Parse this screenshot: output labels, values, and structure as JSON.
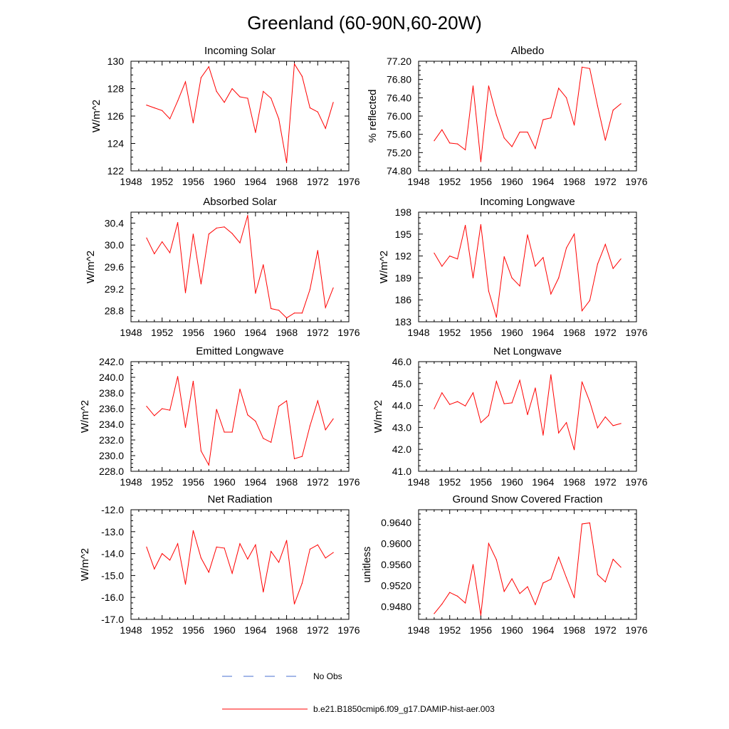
{
  "title": "Greenland (60-90N,60-20W)",
  "colors": {
    "series": "#ff0000",
    "obs": "#4a6fd0",
    "frame": "#000000"
  },
  "legend": [
    {
      "label": "No Obs",
      "style": "dashed",
      "color": "#4a6fd0"
    },
    {
      "label": "b.e21.B1850cmip6.f09_g17.DAMIP-hist-aer.003",
      "style": "solid",
      "color": "#ff0000"
    }
  ],
  "chart_data": [
    {
      "type": "line",
      "title": "Incoming Solar",
      "ylabel": "W/m^2",
      "xlim": [
        1948,
        1976
      ],
      "xticks": [
        1948,
        1952,
        1956,
        1960,
        1964,
        1968,
        1972,
        1976
      ],
      "ylim": [
        122,
        130
      ],
      "yticks": [
        "122",
        "124",
        "126",
        "128",
        "130"
      ],
      "x": [
        1950,
        1951,
        1952,
        1953,
        1954,
        1955,
        1956,
        1957,
        1958,
        1959,
        1960,
        1961,
        1962,
        1963,
        1964,
        1965,
        1966,
        1967,
        1968,
        1969,
        1970,
        1971,
        1972,
        1973,
        1974
      ],
      "series": [
        {
          "name": "b.e21.B1850cmip6.f09_g17.DAMIP-hist-aer.003",
          "values": [
            126.8,
            126.6,
            126.4,
            125.8,
            127.1,
            128.5,
            125.5,
            128.8,
            129.6,
            127.8,
            127.0,
            128.0,
            127.4,
            127.3,
            124.8,
            127.8,
            127.3,
            125.8,
            122.6,
            129.8,
            128.9,
            126.6,
            126.3,
            125.1,
            127.0
          ]
        }
      ]
    },
    {
      "type": "line",
      "title": "Albedo",
      "ylabel": "% reflected",
      "xlim": [
        1948,
        1976
      ],
      "xticks": [
        1948,
        1952,
        1956,
        1960,
        1964,
        1968,
        1972,
        1976
      ],
      "ylim": [
        74.8,
        77.2
      ],
      "yticks": [
        "74.80",
        "75.20",
        "75.60",
        "76.00",
        "76.40",
        "76.80",
        "77.20"
      ],
      "x": [
        1950,
        1951,
        1952,
        1953,
        1954,
        1955,
        1956,
        1957,
        1958,
        1959,
        1960,
        1961,
        1962,
        1963,
        1964,
        1965,
        1966,
        1967,
        1968,
        1969,
        1970,
        1971,
        1972,
        1973,
        1974
      ],
      "series": [
        {
          "name": "b.e21.B1850cmip6.f09_g17.DAMIP-hist-aer.003",
          "values": [
            75.46,
            75.7,
            75.41,
            75.39,
            75.26,
            76.66,
            75.0,
            76.66,
            76.02,
            75.52,
            75.33,
            75.65,
            75.65,
            75.29,
            75.92,
            75.96,
            76.61,
            76.4,
            75.8,
            77.07,
            77.04,
            76.22,
            75.47,
            76.13,
            76.27
          ]
        }
      ]
    },
    {
      "type": "line",
      "title": "Absorbed Solar",
      "ylabel": "W/m^2",
      "xlim": [
        1948,
        1976
      ],
      "xticks": [
        1948,
        1952,
        1956,
        1960,
        1964,
        1968,
        1972,
        1976
      ],
      "ylim": [
        28.6,
        30.6
      ],
      "yticks": [
        "28.8",
        "29.2",
        "29.6",
        "30.0",
        "30.4"
      ],
      "x": [
        1950,
        1951,
        1952,
        1953,
        1954,
        1955,
        1956,
        1957,
        1958,
        1959,
        1960,
        1961,
        1962,
        1963,
        1964,
        1965,
        1966,
        1967,
        1968,
        1969,
        1970,
        1971,
        1972,
        1973,
        1974
      ],
      "series": [
        {
          "name": "b.e21.B1850cmip6.f09_g17.DAMIP-hist-aer.003",
          "values": [
            30.13,
            29.84,
            30.06,
            29.86,
            30.41,
            29.13,
            30.2,
            29.29,
            30.2,
            30.31,
            30.33,
            30.21,
            30.04,
            30.54,
            29.12,
            29.64,
            28.84,
            28.81,
            28.67,
            28.76,
            28.76,
            29.19,
            29.9,
            28.86,
            29.22
          ]
        }
      ]
    },
    {
      "type": "line",
      "title": "Incoming Longwave",
      "ylabel": "W/m^2",
      "xlim": [
        1948,
        1976
      ],
      "xticks": [
        1948,
        1952,
        1956,
        1960,
        1964,
        1968,
        1972,
        1976
      ],
      "ylim": [
        183,
        198
      ],
      "yticks": [
        "183",
        "186",
        "189",
        "192",
        "195",
        "198"
      ],
      "x": [
        1950,
        1951,
        1952,
        1953,
        1954,
        1955,
        1956,
        1957,
        1958,
        1959,
        1960,
        1961,
        1962,
        1963,
        1964,
        1965,
        1966,
        1967,
        1968,
        1969,
        1970,
        1971,
        1972,
        1973,
        1974
      ],
      "series": [
        {
          "name": "b.e21.B1850cmip6.f09_g17.DAMIP-hist-aer.003",
          "values": [
            192.4,
            190.6,
            192.0,
            191.6,
            196.2,
            189.0,
            196.3,
            187.2,
            183.6,
            191.9,
            189.0,
            187.9,
            194.9,
            190.6,
            191.8,
            186.8,
            189.0,
            193.1,
            195.0,
            184.5,
            185.9,
            190.9,
            193.6,
            190.3,
            191.6
          ]
        }
      ]
    },
    {
      "type": "line",
      "title": "Emitted Longwave",
      "ylabel": "W/m^2",
      "xlim": [
        1948,
        1976
      ],
      "xticks": [
        1948,
        1952,
        1956,
        1960,
        1964,
        1968,
        1972,
        1976
      ],
      "ylim": [
        228,
        242
      ],
      "yticks": [
        "228.0",
        "230.0",
        "232.0",
        "234.0",
        "236.0",
        "238.0",
        "240.0",
        "242.0"
      ],
      "x": [
        1950,
        1951,
        1952,
        1953,
        1954,
        1955,
        1956,
        1957,
        1958,
        1959,
        1960,
        1961,
        1962,
        1963,
        1964,
        1965,
        1966,
        1967,
        1968,
        1969,
        1970,
        1971,
        1972,
        1973,
        1974
      ],
      "series": [
        {
          "name": "b.e21.B1850cmip6.f09_g17.DAMIP-hist-aer.003",
          "values": [
            236.3,
            235.1,
            236.0,
            235.8,
            240.1,
            233.6,
            239.5,
            230.6,
            228.8,
            235.9,
            233.0,
            233.0,
            238.5,
            235.2,
            234.4,
            232.2,
            231.7,
            236.3,
            237.0,
            229.6,
            229.9,
            233.8,
            237.0,
            233.3,
            234.7
          ]
        }
      ]
    },
    {
      "type": "line",
      "title": "Net Longwave",
      "ylabel": "W/m^2",
      "xlim": [
        1948,
        1976
      ],
      "xticks": [
        1948,
        1952,
        1956,
        1960,
        1964,
        1968,
        1972,
        1976
      ],
      "ylim": [
        41,
        46
      ],
      "yticks": [
        "41.0",
        "42.0",
        "43.0",
        "44.0",
        "45.0",
        "46.0"
      ],
      "x": [
        1950,
        1951,
        1952,
        1953,
        1954,
        1955,
        1956,
        1957,
        1958,
        1959,
        1960,
        1961,
        1962,
        1963,
        1964,
        1965,
        1966,
        1967,
        1968,
        1969,
        1970,
        1971,
        1972,
        1973,
        1974
      ],
      "series": [
        {
          "name": "b.e21.B1850cmip6.f09_g17.DAMIP-hist-aer.003",
          "values": [
            43.85,
            44.58,
            44.05,
            44.18,
            43.98,
            44.58,
            43.22,
            43.55,
            45.1,
            44.08,
            44.12,
            45.15,
            43.58,
            44.8,
            42.65,
            45.4,
            42.75,
            43.22,
            41.98,
            45.08,
            44.18,
            42.98,
            43.48,
            43.08,
            43.18
          ]
        }
      ]
    },
    {
      "type": "line",
      "title": "Net Radiation",
      "ylabel": "W/m^2",
      "xlim": [
        1948,
        1976
      ],
      "xticks": [
        1948,
        1952,
        1956,
        1960,
        1964,
        1968,
        1972,
        1976
      ],
      "ylim": [
        -17,
        -12
      ],
      "yticks": [
        "-17.0",
        "-16.0",
        "-15.0",
        "-14.0",
        "-13.0",
        "-12.0"
      ],
      "x": [
        1950,
        1951,
        1952,
        1953,
        1954,
        1955,
        1956,
        1957,
        1958,
        1959,
        1960,
        1961,
        1962,
        1963,
        1964,
        1965,
        1966,
        1967,
        1968,
        1969,
        1970,
        1971,
        1972,
        1973,
        1974
      ],
      "series": [
        {
          "name": "b.e21.B1850cmip6.f09_g17.DAMIP-hist-aer.003",
          "values": [
            -13.7,
            -14.7,
            -14.0,
            -14.3,
            -13.55,
            -15.4,
            -12.95,
            -14.2,
            -14.85,
            -13.7,
            -13.75,
            -14.9,
            -13.55,
            -14.25,
            -13.6,
            -15.75,
            -13.9,
            -14.4,
            -13.4,
            -16.3,
            -15.35,
            -13.8,
            -13.6,
            -14.2,
            -13.95
          ]
        }
      ]
    },
    {
      "type": "line",
      "title": "Ground Snow Covered Fraction",
      "ylabel": "unitless",
      "xlim": [
        1948,
        1976
      ],
      "xticks": [
        1948,
        1952,
        1956,
        1960,
        1964,
        1968,
        1972,
        1976
      ],
      "ylim": [
        0.9456,
        0.9664
      ],
      "yticks": [
        "0.9480",
        "0.9520",
        "0.9560",
        "0.9600",
        "0.9640"
      ],
      "x": [
        1950,
        1951,
        1952,
        1953,
        1954,
        1955,
        1956,
        1957,
        1958,
        1959,
        1960,
        1961,
        1962,
        1963,
        1964,
        1965,
        1966,
        1967,
        1968,
        1969,
        1970,
        1971,
        1972,
        1973,
        1974
      ],
      "series": [
        {
          "name": "b.e21.B1850cmip6.f09_g17.DAMIP-hist-aer.003",
          "values": [
            0.9467,
            0.9485,
            0.9507,
            0.95,
            0.9487,
            0.956,
            0.9464,
            0.96,
            0.9569,
            0.9509,
            0.9533,
            0.9505,
            0.9518,
            0.9484,
            0.9525,
            0.9532,
            0.9574,
            0.9535,
            0.9497,
            0.9637,
            0.9639,
            0.9541,
            0.9527,
            0.957,
            0.9555
          ]
        }
      ]
    }
  ]
}
